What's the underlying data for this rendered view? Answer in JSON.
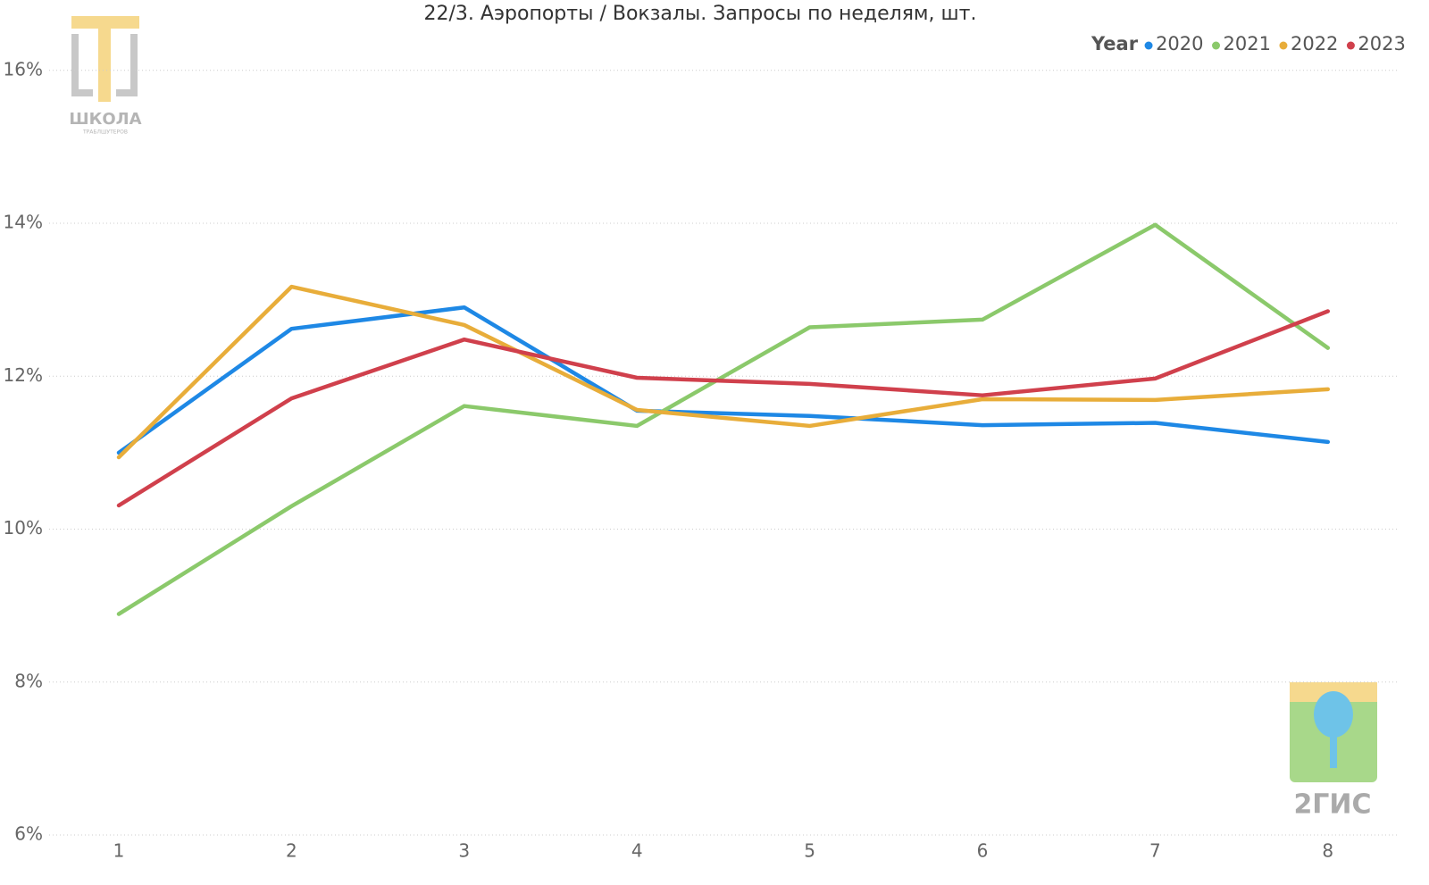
{
  "chart_data": {
    "type": "line",
    "title": "22/3. Аэропорты / Вокзалы. Запросы по неделям, шт.",
    "categories": [
      "1",
      "2",
      "3",
      "4",
      "5",
      "6",
      "7",
      "8"
    ],
    "legend_title": "Year",
    "series": [
      {
        "name": "2020",
        "color": "#1e88e5",
        "values": [
          11.0,
          12.62,
          12.9,
          11.55,
          11.48,
          11.36,
          11.39,
          11.14
        ]
      },
      {
        "name": "2021",
        "color": "#8bc96b",
        "values": [
          8.89,
          10.3,
          11.61,
          11.35,
          12.64,
          12.74,
          13.98,
          12.37
        ]
      },
      {
        "name": "2022",
        "color": "#e8ad3a",
        "values": [
          10.94,
          13.17,
          12.67,
          11.56,
          11.35,
          11.7,
          11.69,
          11.83
        ]
      },
      {
        "name": "2023",
        "color": "#d0404c",
        "values": [
          10.31,
          11.71,
          12.48,
          11.98,
          11.9,
          11.75,
          11.97,
          12.85
        ]
      }
    ],
    "ylim": [
      6,
      16.5
    ],
    "yticks": [
      {
        "value": 6,
        "label": "6%"
      },
      {
        "value": 8,
        "label": "8%"
      },
      {
        "value": 10,
        "label": "10%"
      },
      {
        "value": 12,
        "label": "12%"
      },
      {
        "value": 14,
        "label": "14%"
      },
      {
        "value": 16,
        "label": "16%"
      }
    ],
    "grid": true
  },
  "logos": {
    "school": "ШКОЛА",
    "school_sub": "ТРАБЛШУТЕРОВ",
    "brand": "2ГИС"
  }
}
